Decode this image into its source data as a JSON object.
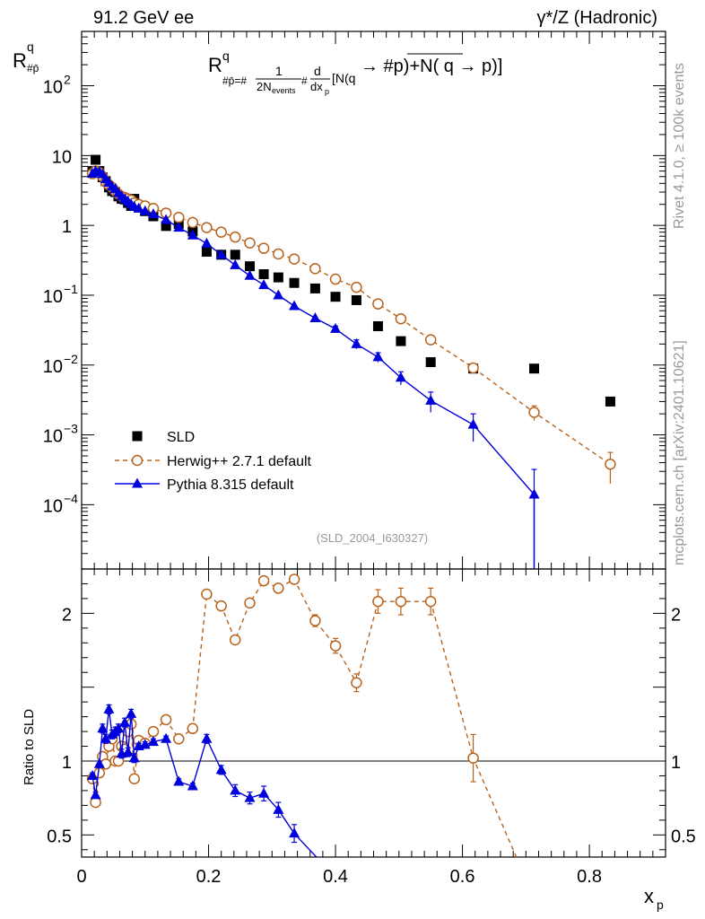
{
  "header": {
    "left": "91.2 GeV ee",
    "right": "γ*/Z (Hadronic)"
  },
  "side": {
    "rivet": "Rivet 4.1.0, ≥ 100k events",
    "mcplots": "mcplots.cern.ch [arXiv:2401.10621]"
  },
  "chart_data": {
    "type": "scatter",
    "title": "R^q_{#bar{p}} = #frac{1}{2N_{events}} #frac{d}{dx_{p}}[N(q → #bar{p})+N(q → p)]",
    "title_parts": {
      "r": "R",
      "sup": "q",
      "sub": "#p̄=#",
      "frac1": "1",
      "frac1den": "2N",
      "frac1densub": "events",
      "hash": "#",
      "d": "d",
      "dx": "dx",
      "dxsub": "p",
      "rest": "[N(q → #p)+N( q → p)]"
    },
    "ylabel": {
      "main": "R",
      "sup": "q",
      "sub": "#p̄"
    },
    "xlabel": {
      "main": "x",
      "sub": "p"
    },
    "ratio_ylabel": "Ratio to SLD",
    "analysis_tag": "(SLD_2004_I630327)",
    "xlim": [
      0,
      0.92
    ],
    "ylim": [
      1.2e-05,
      600
    ],
    "ratio_ylim": [
      0.35,
      2.3
    ],
    "x_ticks": [
      "0",
      "0.2",
      "0.4",
      "0.6",
      "0.8"
    ],
    "x_tick_values": [
      0,
      0.2,
      0.4,
      0.6,
      0.8
    ],
    "y_ticks": [
      {
        "v": 100,
        "base": "10",
        "exp": "2"
      },
      {
        "v": 10,
        "base": "10",
        "exp": ""
      },
      {
        "v": 1,
        "base": "1",
        "exp": ""
      },
      {
        "v": 0.1,
        "base": "10",
        "exp": "−1"
      },
      {
        "v": 0.01,
        "base": "10",
        "exp": "−2"
      },
      {
        "v": 0.001,
        "base": "10",
        "exp": "−3"
      },
      {
        "v": 0.0001,
        "base": "10",
        "exp": "−4"
      }
    ],
    "ratio_ticks": [
      {
        "v": 0.5,
        "label": "0.5"
      },
      {
        "v": 1,
        "label": "1"
      },
      {
        "v": 2,
        "label": "2"
      }
    ],
    "legend": [
      {
        "label": "SLD",
        "style": "data"
      },
      {
        "label": "Herwig++ 2.7.1 default",
        "style": "herwig"
      },
      {
        "label": "Pythia 8.315 default",
        "style": "pythia"
      }
    ],
    "colors": {
      "data": "#000000",
      "herwig": "#b8621b",
      "pythia": "#0000dd"
    },
    "series": [
      {
        "name": "SLD",
        "style": "data",
        "x": [
          0.017,
          0.022,
          0.028,
          0.033,
          0.038,
          0.043,
          0.048,
          0.053,
          0.058,
          0.063,
          0.068,
          0.073,
          0.078,
          0.083,
          0.09,
          0.1,
          0.113,
          0.133,
          0.153,
          0.175,
          0.197,
          0.22,
          0.242,
          0.265,
          0.287,
          0.31,
          0.335,
          0.368,
          0.4,
          0.433,
          0.467,
          0.503,
          0.55,
          0.617,
          0.713,
          0.833
        ],
        "y": [
          6.0,
          8.7,
          6.0,
          4.9,
          4.3,
          3.5,
          3.1,
          3.0,
          2.6,
          2.4,
          2.35,
          2.1,
          1.9,
          2.4,
          1.8,
          1.6,
          1.35,
          0.98,
          1.05,
          0.82,
          0.42,
          0.38,
          0.38,
          0.26,
          0.2,
          0.18,
          0.15,
          0.125,
          0.095,
          0.085,
          0.036,
          0.022,
          0.011,
          0.0089,
          0.0089,
          0.003
        ],
        "err": [
          0,
          0,
          0,
          0,
          0,
          0,
          0,
          0,
          0,
          0,
          0,
          0,
          0,
          0,
          0,
          0,
          0,
          0,
          0,
          0,
          0,
          0,
          0,
          0,
          0,
          0,
          0,
          0,
          0,
          0,
          0,
          0,
          0,
          0,
          0,
          0
        ]
      },
      {
        "name": "Herwig++ 2.7.1 default",
        "style": "herwig",
        "x": [
          0.017,
          0.022,
          0.028,
          0.033,
          0.038,
          0.043,
          0.048,
          0.053,
          0.058,
          0.063,
          0.068,
          0.073,
          0.078,
          0.083,
          0.09,
          0.1,
          0.113,
          0.133,
          0.153,
          0.175,
          0.197,
          0.22,
          0.242,
          0.265,
          0.287,
          0.31,
          0.335,
          0.368,
          0.4,
          0.433,
          0.467,
          0.503,
          0.55,
          0.617,
          0.713,
          0.833
        ],
        "y": [
          5.5,
          6.0,
          5.7,
          5.0,
          4.2,
          3.8,
          3.5,
          3.1,
          2.8,
          2.6,
          2.5,
          2.4,
          2.3,
          2.1,
          2.0,
          1.9,
          1.75,
          1.5,
          1.3,
          1.1,
          0.93,
          0.8,
          0.68,
          0.56,
          0.47,
          0.39,
          0.33,
          0.24,
          0.17,
          0.13,
          0.075,
          0.046,
          0.023,
          0.0091,
          0.0021,
          0.00038
        ],
        "err": [
          0,
          0,
          0,
          0,
          0,
          0,
          0,
          0,
          0,
          0,
          0,
          0,
          0,
          0,
          0,
          0,
          0,
          0,
          0,
          0,
          0,
          0,
          0,
          0,
          0,
          0,
          0,
          0,
          0,
          0,
          0,
          0,
          0,
          0,
          0.0005,
          0.00018
        ]
      },
      {
        "name": "Pythia 8.315 default",
        "style": "pythia",
        "x": [
          0.017,
          0.022,
          0.028,
          0.033,
          0.038,
          0.043,
          0.048,
          0.053,
          0.058,
          0.063,
          0.068,
          0.073,
          0.078,
          0.083,
          0.09,
          0.1,
          0.113,
          0.133,
          0.153,
          0.175,
          0.197,
          0.22,
          0.242,
          0.265,
          0.287,
          0.31,
          0.335,
          0.368,
          0.4,
          0.433,
          0.467,
          0.503,
          0.55,
          0.617,
          0.713,
          0.833
        ],
        "y": [
          5.5,
          6.0,
          5.8,
          5.4,
          4.6,
          4.1,
          3.6,
          3.3,
          2.9,
          2.6,
          2.4,
          2.2,
          2.0,
          1.85,
          1.75,
          1.6,
          1.45,
          1.2,
          0.93,
          0.72,
          0.55,
          0.38,
          0.27,
          0.19,
          0.14,
          0.1,
          0.07,
          0.047,
          0.033,
          0.02,
          0.013,
          0.0066,
          0.0031,
          0.0014,
          0.00014,
          null
        ],
        "err": [
          0,
          0,
          0,
          0,
          0,
          0,
          0,
          0,
          0,
          0,
          0,
          0,
          0,
          0,
          0,
          0,
          0,
          0,
          0,
          0,
          0,
          0,
          0,
          0,
          0,
          0,
          0,
          0,
          0.003,
          0.003,
          0.002,
          0.0014,
          0.001,
          0.0006,
          0.00018,
          null
        ]
      }
    ],
    "ratio_series": [
      {
        "name": "Herwig++ 2.7.1 default",
        "style": "herwig",
        "x": [
          0.017,
          0.022,
          0.028,
          0.033,
          0.038,
          0.043,
          0.048,
          0.053,
          0.058,
          0.063,
          0.068,
          0.073,
          0.078,
          0.083,
          0.09,
          0.1,
          0.113,
          0.133,
          0.153,
          0.175,
          0.197,
          0.22,
          0.242,
          0.265,
          0.287,
          0.31,
          0.335,
          0.368,
          0.4,
          0.433,
          0.467,
          0.503,
          0.55,
          0.617,
          0.685
        ],
        "y": [
          0.88,
          0.72,
          0.92,
          1.03,
          0.98,
          1.1,
          1.15,
          1.0,
          1.0,
          1.1,
          1.08,
          1.2,
          1.25,
          0.88,
          1.14,
          1.12,
          1.2,
          1.28,
          1.15,
          1.22,
          2.13,
          2.05,
          1.82,
          2.07,
          2.22,
          2.17,
          2.23,
          1.95,
          1.78,
          1.53,
          2.08,
          2.08,
          2.08,
          1.02,
          0.35
        ],
        "err": [
          0,
          0,
          0,
          0,
          0,
          0,
          0,
          0,
          0,
          0,
          0,
          0,
          0,
          0,
          0,
          0,
          0,
          0,
          0,
          0,
          0,
          0,
          0,
          0,
          0,
          0,
          0,
          0.04,
          0.05,
          0.06,
          0.08,
          0.09,
          0.09,
          0.16,
          0
        ]
      },
      {
        "name": "Pythia 8.315 default",
        "style": "pythia",
        "x": [
          0.017,
          0.022,
          0.028,
          0.033,
          0.038,
          0.043,
          0.048,
          0.053,
          0.058,
          0.063,
          0.068,
          0.073,
          0.078,
          0.083,
          0.09,
          0.1,
          0.113,
          0.133,
          0.153,
          0.175,
          0.197,
          0.22,
          0.242,
          0.265,
          0.287,
          0.31,
          0.335,
          0.37
        ],
        "y": [
          0.9,
          0.77,
          0.98,
          1.22,
          1.15,
          1.35,
          1.18,
          1.2,
          1.22,
          1.05,
          1.26,
          1.06,
          1.32,
          1.02,
          1.1,
          1.11,
          1.13,
          1.15,
          0.86,
          0.83,
          1.15,
          0.94,
          0.8,
          0.75,
          0.78,
          0.67,
          0.51,
          0.35
        ],
        "err": [
          0.02,
          0.02,
          0.02,
          0.03,
          0.03,
          0.03,
          0.03,
          0.03,
          0.03,
          0.03,
          0.03,
          0.03,
          0.03,
          0.03,
          0.02,
          0.02,
          0.02,
          0.02,
          0.02,
          0.02,
          0.03,
          0.03,
          0.04,
          0.04,
          0.05,
          0.05,
          0.06,
          0
        ]
      }
    ]
  }
}
